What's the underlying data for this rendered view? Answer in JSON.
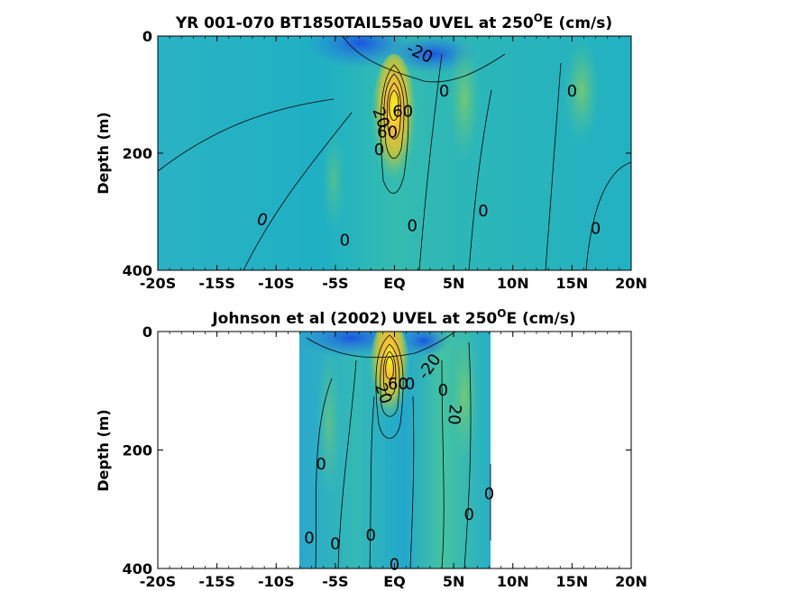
{
  "chart_data": [
    {
      "type": "heatmap",
      "title_prefix": "YR 001-070 BT1850TAIL55a0 UVEL at 250",
      "title_sup": "O",
      "title_suffix": "E (cm/s)",
      "ylabel": "Depth (m)",
      "xlabel": "",
      "x_ticks": [
        "-20S",
        "-15S",
        "-10S",
        "-5S",
        "EQ",
        "5N",
        "10N",
        "15N",
        "20N"
      ],
      "x_tick_values": [
        -20,
        -15,
        -10,
        -5,
        0,
        5,
        10,
        15,
        20
      ],
      "y_ticks": [
        "0",
        "200",
        "400"
      ],
      "y_tick_values": [
        0,
        200,
        400
      ],
      "xlim": [
        -20,
        20
      ],
      "ylim": [
        400,
        0
      ],
      "data_extent": [
        -20,
        20
      ],
      "colormap": [
        "#1a3fd8",
        "#2c82e6",
        "#1fb0c4",
        "#46c29a",
        "#9cc84e",
        "#f1bd3a",
        "#f8f514"
      ],
      "color_range": [
        -40,
        120
      ],
      "contour_labels": [
        {
          "text": "-20",
          "lon": 2.1,
          "depth": 30,
          "angle": 25
        },
        {
          "text": "20",
          "lon": -1.2,
          "depth": 140,
          "angle": 70
        },
        {
          "text": "60",
          "lon": -0.6,
          "depth": 165,
          "angle": 0
        },
        {
          "text": "60",
          "lon": 0.7,
          "depth": 130,
          "angle": 0
        },
        {
          "text": "0",
          "lon": -1.3,
          "depth": 195,
          "angle": 0
        },
        {
          "text": "0",
          "lon": 4.2,
          "depth": 95,
          "angle": 0
        },
        {
          "text": "0",
          "lon": 15.0,
          "depth": 95,
          "angle": 0
        },
        {
          "text": "0",
          "lon": -11.2,
          "depth": 315,
          "angle": 20
        },
        {
          "text": "0",
          "lon": -4.2,
          "depth": 350,
          "angle": 0
        },
        {
          "text": "0",
          "lon": 1.5,
          "depth": 325,
          "angle": 0
        },
        {
          "text": "0",
          "lon": 7.5,
          "depth": 300,
          "angle": 0
        },
        {
          "text": "0",
          "lon": 17.0,
          "depth": 330,
          "angle": 0
        }
      ]
    },
    {
      "type": "heatmap",
      "title_prefix": "Johnson et al (2002) UVEL at 250",
      "title_sup": "O",
      "title_suffix": "E (cm/s)",
      "ylabel": "Depth (m)",
      "xlabel": "",
      "x_ticks": [
        "-20S",
        "-15S",
        "-10S",
        "-5S",
        "EQ",
        "5N",
        "10N",
        "15N",
        "20N"
      ],
      "x_tick_values": [
        -20,
        -15,
        -10,
        -5,
        0,
        5,
        10,
        15,
        20
      ],
      "y_ticks": [
        "0",
        "200",
        "400"
      ],
      "y_tick_values": [
        0,
        200,
        400
      ],
      "xlim": [
        -20,
        20
      ],
      "ylim": [
        400,
        0
      ],
      "data_extent": [
        -8,
        8.2
      ],
      "colormap": [
        "#1a3fd8",
        "#2c82e6",
        "#1fb0c4",
        "#46c29a",
        "#9cc84e",
        "#f1bd3a",
        "#f8f514"
      ],
      "color_range": [
        -40,
        120
      ],
      "contour_labels": [
        {
          "text": "-20",
          "lon": 3.0,
          "depth": 60,
          "angle": -55
        },
        {
          "text": "20",
          "lon": -1.0,
          "depth": 105,
          "angle": 70
        },
        {
          "text": "60",
          "lon": 0.3,
          "depth": 90,
          "angle": 0
        },
        {
          "text": "0",
          "lon": 1.3,
          "depth": 90,
          "angle": 0
        },
        {
          "text": "0",
          "lon": 4.1,
          "depth": 100,
          "angle": 0
        },
        {
          "text": "20",
          "lon": 5.0,
          "depth": 140,
          "angle": 95
        },
        {
          "text": "0",
          "lon": -6.2,
          "depth": 225,
          "angle": 0
        },
        {
          "text": "0",
          "lon": 8.0,
          "depth": 275,
          "angle": 0
        },
        {
          "text": "0",
          "lon": 6.3,
          "depth": 310,
          "angle": 0
        },
        {
          "text": "0",
          "lon": -7.2,
          "depth": 350,
          "angle": 0
        },
        {
          "text": "0",
          "lon": -5.0,
          "depth": 360,
          "angle": 0
        },
        {
          "text": "0",
          "lon": -2.0,
          "depth": 345,
          "angle": 0
        },
        {
          "text": "0",
          "lon": 0.0,
          "depth": 395,
          "angle": 0
        }
      ]
    }
  ]
}
